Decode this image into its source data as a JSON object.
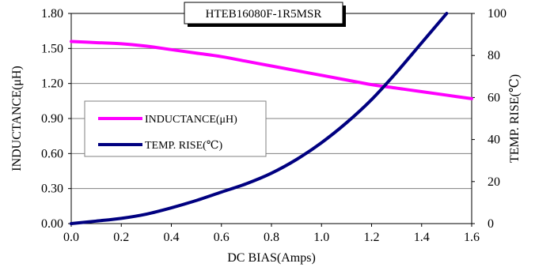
{
  "chart_data": {
    "type": "line",
    "title": "HTEB16080F-1R5MSR",
    "xlabel": "DC BIAS(Amps)",
    "ylabel_left": "INDUCTANCE(μH)",
    "ylabel_right": "TEMP. RISE(℃)",
    "xlim": [
      0.0,
      1.6
    ],
    "ylim_left": [
      0.0,
      1.8
    ],
    "ylim_right": [
      0,
      100
    ],
    "x_ticks": [
      "0.0",
      "0.2",
      "0.4",
      "0.6",
      "0.8",
      "1.0",
      "1.2",
      "1.4",
      "1.6"
    ],
    "y_left_ticks": [
      "0.00",
      "0.30",
      "0.60",
      "0.90",
      "1.20",
      "1.50",
      "1.80"
    ],
    "y_right_ticks": [
      "0",
      "20",
      "40",
      "60",
      "80",
      "100"
    ],
    "grid": "horizontal",
    "legend_position": "left-middle",
    "series": [
      {
        "name": "INDUCTANCE(μH)",
        "axis": "left",
        "color": "#ff00ff",
        "x": [
          0.0,
          0.1,
          0.2,
          0.3,
          0.4,
          0.5,
          0.6,
          0.7,
          0.8,
          0.9,
          1.0,
          1.1,
          1.2,
          1.3,
          1.4,
          1.5,
          1.6
        ],
        "values": [
          1.56,
          1.55,
          1.54,
          1.52,
          1.49,
          1.46,
          1.43,
          1.39,
          1.35,
          1.31,
          1.27,
          1.23,
          1.19,
          1.16,
          1.13,
          1.1,
          1.07
        ]
      },
      {
        "name": "TEMP. RISE(℃)",
        "axis": "right",
        "color": "#000080",
        "x": [
          0.0,
          0.1,
          0.2,
          0.3,
          0.4,
          0.5,
          0.6,
          0.7,
          0.8,
          0.9,
          1.0,
          1.1,
          1.2,
          1.3,
          1.4,
          1.5
        ],
        "values": [
          0,
          1.2,
          2.5,
          4.5,
          7.5,
          11,
          15,
          19,
          24,
          30.5,
          38.5,
          48,
          59,
          72,
          86,
          100
        ]
      }
    ]
  }
}
